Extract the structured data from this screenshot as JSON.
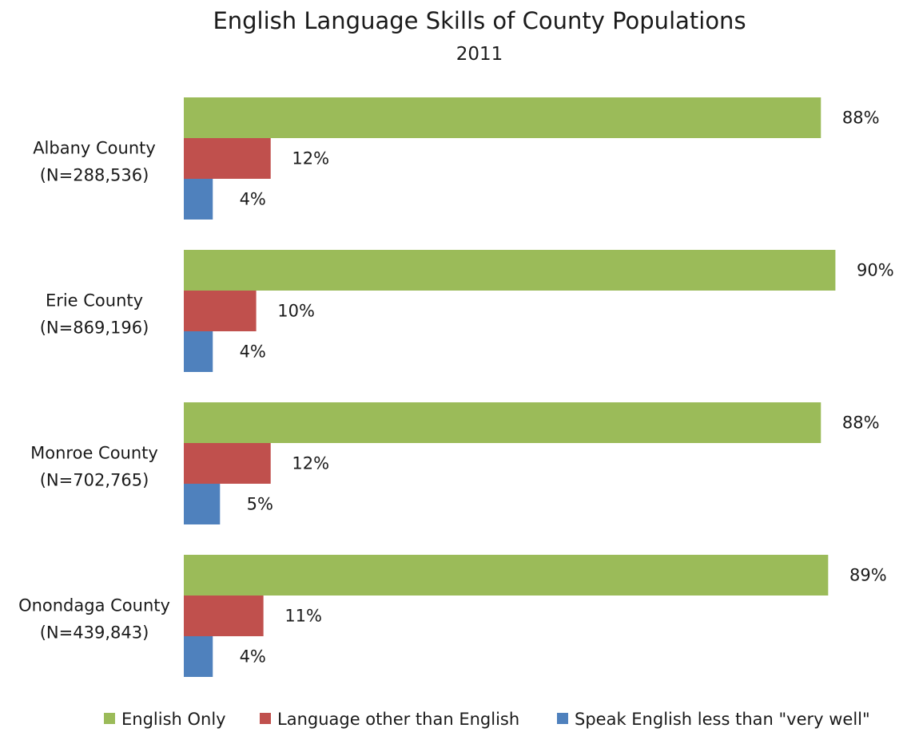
{
  "chart_data": {
    "type": "bar",
    "orientation": "horizontal",
    "title": "English Language Skills of County Populations",
    "subtitle": "2011",
    "xlabel": "",
    "ylabel": "",
    "xlim": [
      0,
      100
    ],
    "unit": "%",
    "grid": false,
    "legend_position": "bottom",
    "categories": [
      [
        "Albany County",
        "(N=288,536)"
      ],
      [
        "Erie County",
        "(N=869,196)"
      ],
      [
        "Monroe County",
        "(N=702,765)"
      ],
      [
        "Onondaga County",
        "(N=439,843)"
      ]
    ],
    "series": [
      {
        "name": "English Only",
        "color": "#9bbb59",
        "values": [
          88,
          90,
          88,
          89
        ]
      },
      {
        "name": "Language other than English",
        "color": "#c0504d",
        "values": [
          12,
          10,
          12,
          11
        ]
      },
      {
        "name": "Speak English less than \"very well\"",
        "color": "#4f81bd",
        "values": [
          4,
          4,
          5,
          4
        ]
      }
    ]
  }
}
